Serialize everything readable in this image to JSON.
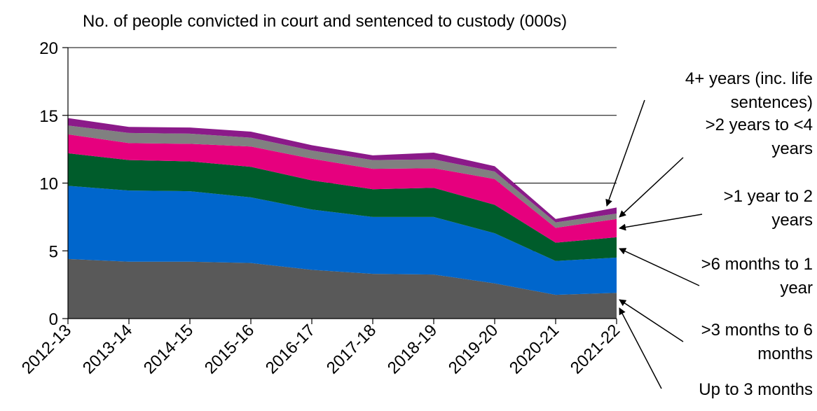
{
  "chart_data": {
    "type": "stacked_area",
    "title": "No. of people convicted in court and sentenced to custody (000s)",
    "categories": [
      "2012-13",
      "2013-14",
      "2014-15",
      "2015-16",
      "2016-17",
      "2017-18",
      "2018-19",
      "2019-20",
      "2020-21",
      "2021-22"
    ],
    "series": [
      {
        "name": "Up to 3 months",
        "color": "#595959",
        "values": [
          4.4,
          4.2,
          4.2,
          4.1,
          3.6,
          3.3,
          3.25,
          2.6,
          1.75,
          1.9
        ]
      },
      {
        "name": ">3 months to 6 months",
        "color": "#0066cc",
        "values": [
          5.4,
          5.25,
          5.2,
          4.85,
          4.45,
          4.2,
          4.25,
          3.7,
          2.5,
          2.6
        ]
      },
      {
        "name": ">6 months to 1 year",
        "color": "#005c2b",
        "values": [
          2.4,
          2.25,
          2.2,
          2.25,
          2.15,
          2.05,
          2.15,
          2.1,
          1.35,
          1.5
        ]
      },
      {
        "name": ">1 year to 2 years",
        "color": "#e6007e",
        "values": [
          1.4,
          1.25,
          1.3,
          1.5,
          1.6,
          1.5,
          1.45,
          1.9,
          1.1,
          1.35
        ]
      },
      {
        "name": ">2 years to <4 years",
        "color": "#808080",
        "values": [
          0.65,
          0.75,
          0.75,
          0.65,
          0.6,
          0.65,
          0.65,
          0.55,
          0.4,
          0.4
        ]
      },
      {
        "name": "4+ years (inc. life sentences)",
        "color": "#8b1a89",
        "values": [
          0.55,
          0.45,
          0.45,
          0.45,
          0.4,
          0.35,
          0.5,
          0.4,
          0.25,
          0.45
        ]
      }
    ],
    "ylim": [
      0,
      20
    ],
    "yticks": [
      0,
      5,
      10,
      15,
      20
    ],
    "grid": true
  }
}
